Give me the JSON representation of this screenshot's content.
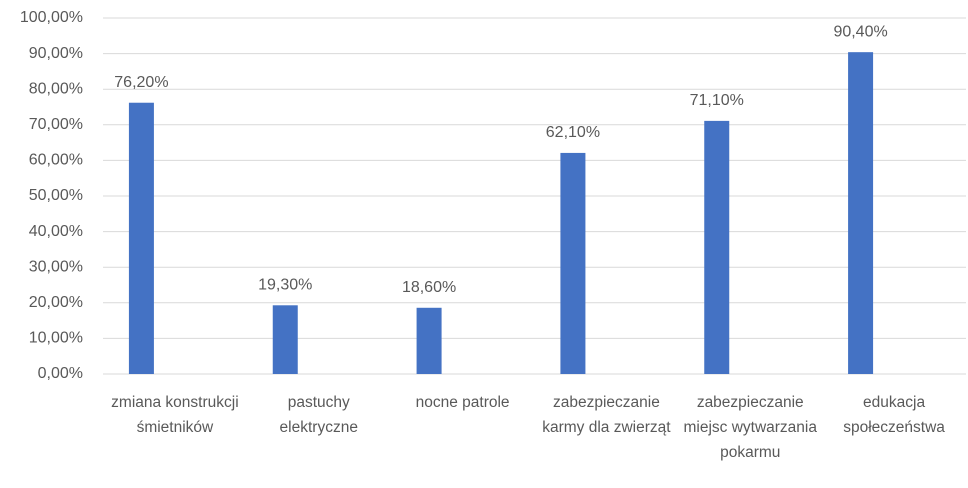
{
  "chart_data": {
    "type": "bar",
    "categories": [
      "zmiana konstrukcji śmietników",
      "pastuchy elektryczne",
      "nocne patrole",
      "zabezpieczanie karmy dla zwierząt",
      "zabezpieczanie miejsc wytwarzania pokarmu",
      "edukacja społeczeństwa"
    ],
    "values": [
      76.2,
      19.3,
      18.6,
      62.1,
      71.1,
      90.4
    ],
    "value_labels": [
      "76,20%",
      "19,30%",
      "18,60%",
      "62,10%",
      "71,10%",
      "90,40%"
    ],
    "color": "#4472c4",
    "ylim": [
      0,
      100
    ],
    "yticks": [
      {
        "value": 0,
        "label": "0,00%"
      },
      {
        "value": 10,
        "label": "10,00%"
      },
      {
        "value": 20,
        "label": "20,00%"
      },
      {
        "value": 30,
        "label": "30,00%"
      },
      {
        "value": 40,
        "label": "40,00%"
      },
      {
        "value": 50,
        "label": "50,00%"
      },
      {
        "value": 60,
        "label": "60,00%"
      },
      {
        "value": 70,
        "label": "70,00%"
      },
      {
        "value": 80,
        "label": "80,00%"
      },
      {
        "value": 90,
        "label": "90,00%"
      },
      {
        "value": 100,
        "label": "100,00%"
      }
    ],
    "grid": true
  }
}
